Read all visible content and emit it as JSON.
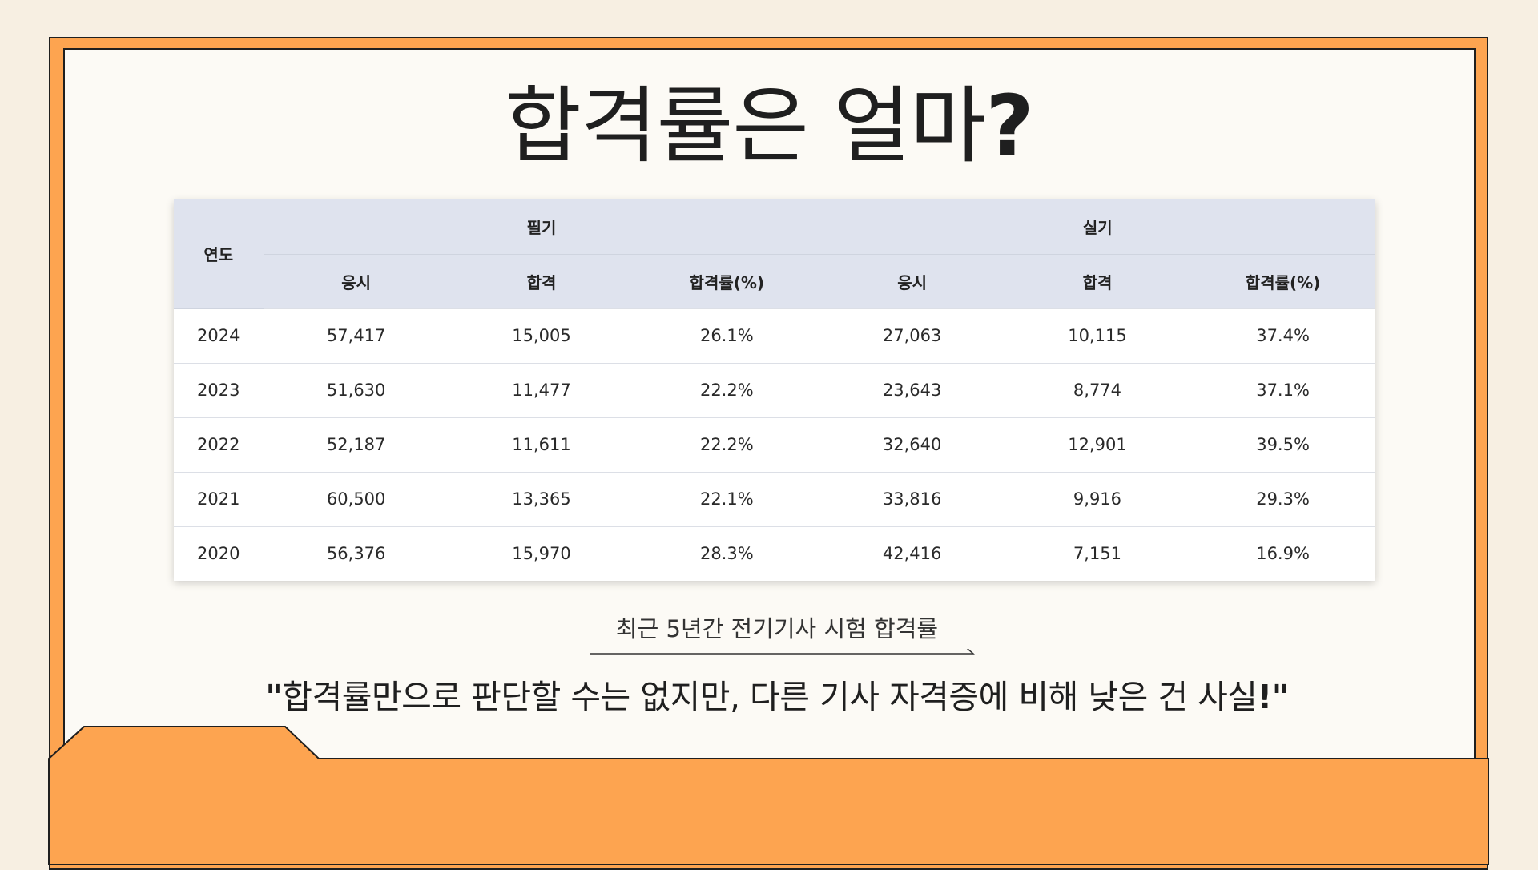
{
  "title": {
    "text": "합격률은 얼마",
    "mark": "?"
  },
  "table": {
    "year_header": "연도",
    "group_headers": [
      "필기",
      "실기"
    ],
    "sub_headers": [
      "응시",
      "합격",
      "합격률(%)",
      "응시",
      "합격",
      "합격률(%)"
    ],
    "rows": [
      [
        "2024",
        "57,417",
        "15,005",
        "26.1%",
        "27,063",
        "10,115",
        "37.4%"
      ],
      [
        "2023",
        "51,630",
        "11,477",
        "22.2%",
        "23,643",
        "8,774",
        "37.1%"
      ],
      [
        "2022",
        "52,187",
        "11,611",
        "22.2%",
        "32,640",
        "12,901",
        "39.5%"
      ],
      [
        "2021",
        "60,500",
        "13,365",
        "22.1%",
        "33,816",
        "9,916",
        "29.3%"
      ],
      [
        "2020",
        "56,376",
        "15,970",
        "28.3%",
        "42,416",
        "7,151",
        "16.9%"
      ]
    ]
  },
  "caption": "최근 5년간 전기기사 시험 합격률",
  "quote": {
    "open": "\"",
    "text": "합격률만으로 판단할 수는 없지만, 다른 기사 자격증에 비해 낮은 건 사실",
    "close": "!\""
  },
  "colors": {
    "accent": "#fda450",
    "page_background": "#f7efe2",
    "card_background": "#fcfaf5",
    "header_fill": "#dfe3ee"
  }
}
